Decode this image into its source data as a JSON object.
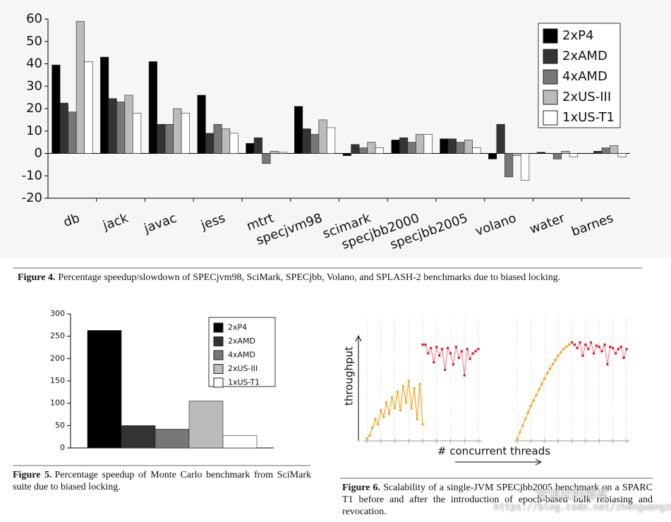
{
  "chart_data": [
    {
      "type": "bar",
      "categories": [
        "db",
        "jack",
        "javac",
        "jess",
        "mtrt",
        "specjvm98",
        "scimark",
        "specjbb2000",
        "specjbb2005",
        "volano",
        "water",
        "barnes"
      ],
      "series": [
        {
          "name": "2xP4",
          "color": "#000000",
          "values": [
            39.5,
            43,
            41,
            26,
            4.5,
            21,
            -1,
            6,
            6.5,
            -2.5,
            0.5,
            0
          ]
        },
        {
          "name": "2xAMD",
          "color": "#333333",
          "values": [
            22.5,
            24.5,
            13,
            9,
            7,
            11,
            4,
            7,
            6.5,
            13,
            0,
            1
          ]
        },
        {
          "name": "4xAMD",
          "color": "#777777",
          "values": [
            18.5,
            23,
            13,
            13,
            -4.5,
            8.5,
            2.5,
            5,
            5,
            -10.5,
            -2.5,
            2.5
          ]
        },
        {
          "name": "2xUS-III",
          "color": "#bbbbbb",
          "values": [
            59,
            26,
            20,
            11,
            1,
            15,
            5,
            8.5,
            6,
            -1,
            1,
            3.5
          ]
        },
        {
          "name": "1xUS-T1",
          "color": "#ffffff",
          "values": [
            41,
            18,
            18,
            9,
            0.5,
            11.5,
            2.5,
            8.5,
            2.5,
            -12,
            -1.5,
            -1.5
          ]
        }
      ],
      "ylim": [
        -20,
        60
      ],
      "yticks": [
        -20,
        -10,
        0,
        10,
        20,
        30,
        40,
        50,
        60
      ],
      "legend": "upper-right"
    },
    {
      "type": "bar",
      "categories": [
        null
      ],
      "series": [
        {
          "name": "2xP4",
          "color": "#000000",
          "values": [
            263
          ]
        },
        {
          "name": "2xAMD",
          "color": "#333333",
          "values": [
            50
          ]
        },
        {
          "name": "4xAMD",
          "color": "#777777",
          "values": [
            42
          ]
        },
        {
          "name": "2xUS-III",
          "color": "#bbbbbb",
          "values": [
            105
          ]
        },
        {
          "name": "1xUS-T1",
          "color": "#ffffff",
          "values": [
            28
          ]
        }
      ],
      "ylim": [
        0,
        300
      ],
      "yticks": [
        0,
        50,
        100,
        150,
        200,
        250,
        300
      ],
      "legend": "upper-right"
    },
    {
      "type": "line",
      "x_label": "# concurrent threads",
      "y_label": "throughput",
      "xlim": [
        0,
        40
      ],
      "ylim": [
        0,
        100
      ],
      "series": [
        {
          "color": "#f5a623",
          "x": [
            0,
            1,
            2,
            3,
            4,
            5,
            6,
            7,
            8,
            9,
            10,
            11,
            12,
            13,
            14,
            15,
            16,
            17,
            18,
            19,
            20
          ],
          "values": [
            2,
            5,
            12,
            20,
            15,
            28,
            22,
            35,
            25,
            40,
            30,
            45,
            28,
            50,
            35,
            55,
            30,
            48,
            20,
            52,
            15
          ]
        },
        {
          "color": "#e02020",
          "x": [
            20,
            21,
            22,
            23,
            24,
            25,
            26,
            27,
            28,
            29,
            30,
            31,
            32,
            33,
            34,
            35,
            36,
            37,
            38,
            39,
            40
          ],
          "values": [
            88,
            88,
            80,
            85,
            72,
            86,
            78,
            84,
            65,
            85,
            80,
            70,
            86,
            76,
            82,
            60,
            84,
            75,
            80,
            82,
            84
          ]
        }
      ]
    },
    {
      "type": "line",
      "xlim": [
        0,
        40
      ],
      "ylim": [
        0,
        100
      ],
      "series": [
        {
          "color": "#f5a623",
          "x": [
            0,
            1,
            2,
            3,
            4,
            5,
            6,
            7,
            8,
            9,
            10,
            11,
            12,
            13,
            14,
            15,
            16,
            17,
            18,
            19
          ],
          "values": [
            2,
            8,
            14,
            20,
            26,
            32,
            37,
            42,
            47,
            52,
            57,
            62,
            66,
            70,
            74,
            78,
            81,
            84,
            86,
            88
          ]
        },
        {
          "color": "#e02020",
          "x": [
            20,
            21,
            22,
            23,
            24,
            25,
            26,
            27,
            28,
            29,
            30,
            31,
            32,
            33,
            34,
            35,
            36,
            37,
            38,
            39,
            40
          ],
          "values": [
            90,
            88,
            85,
            90,
            78,
            88,
            84,
            90,
            80,
            87,
            86,
            82,
            88,
            70,
            86,
            85,
            80,
            84,
            86,
            76,
            84
          ]
        }
      ]
    }
  ],
  "captions": [
    {
      "label": "Figure 4.",
      "text": "Percentage speedup/slowdown of SPECjvm98, SciMark, SPECjbb, Volano, and SPLASH-2 benchmarks due to biased locking."
    },
    {
      "label": "Figure 5.",
      "text": "Percentage speedup of Monte Carlo benchmark from SciMark suite due to biased locking."
    },
    {
      "label": "Figure 6.",
      "text": "Scalability of a single-JVM SPECjbb2005 benchmark on a SPARC T1 before and after the introduction of epoch-based bulk rebiasing and revocation."
    }
  ],
  "watermark": [
    "安琪拉的博客",
    "https://blog.csdn.net/zhengwangzw"
  ]
}
